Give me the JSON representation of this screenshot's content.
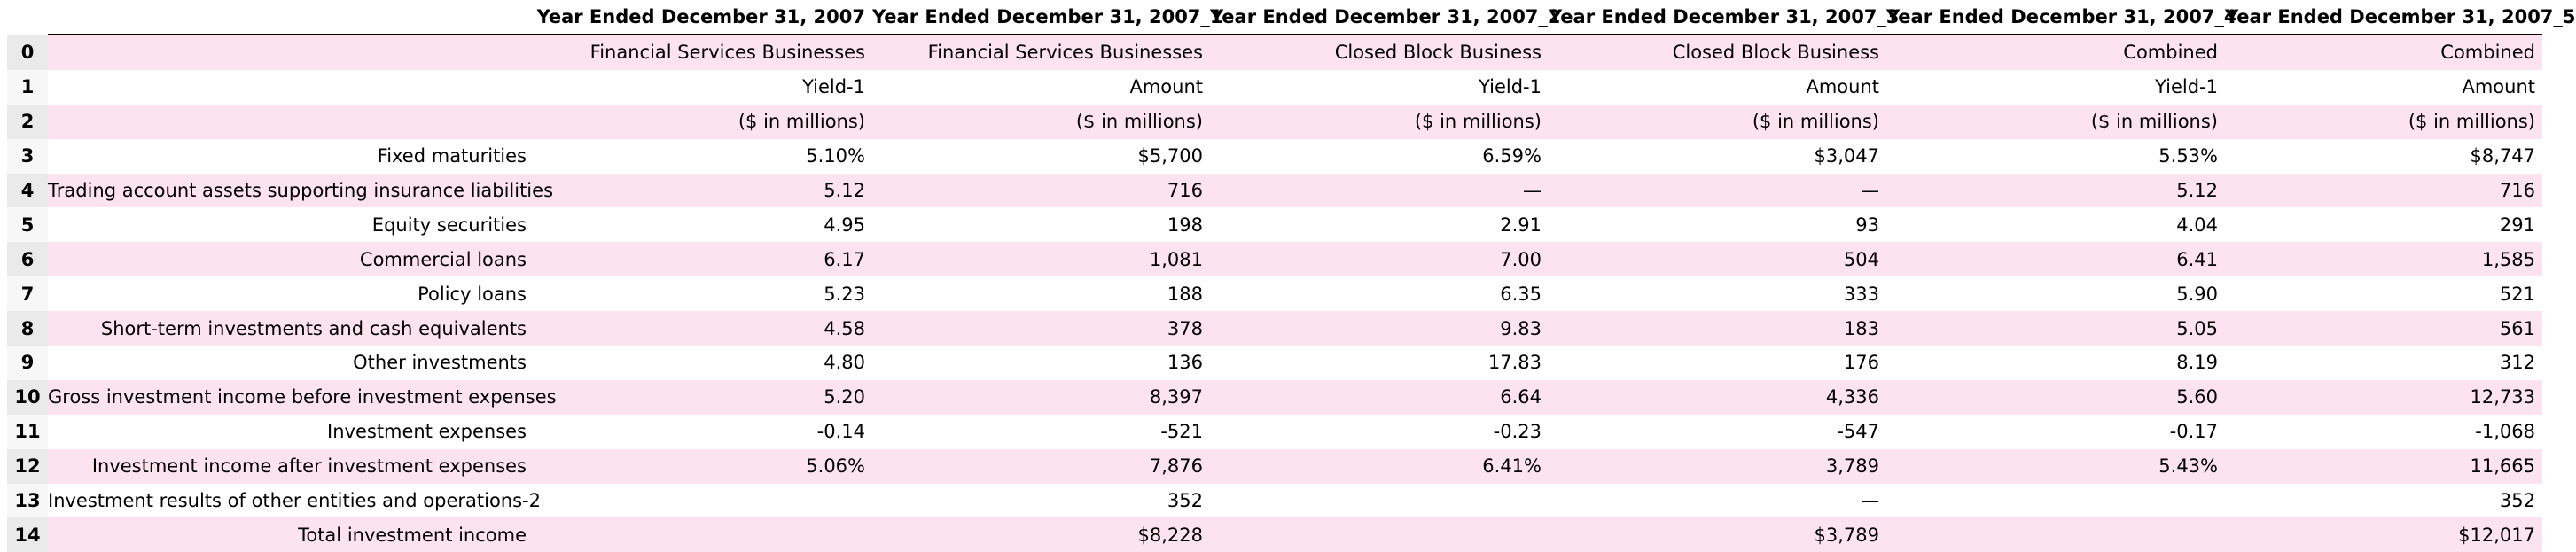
{
  "columns": [
    "Year Ended December 31, 2007",
    "Year Ended December 31, 2007_1",
    "Year Ended December 31, 2007_2",
    "Year Ended December 31, 2007_3",
    "Year Ended December 31, 2007_4",
    "Year Ended December 31, 2007_5"
  ],
  "rows": [
    {
      "idx": "0",
      "label": "",
      "cells": [
        "Financial Services Businesses",
        "Financial Services Businesses",
        "Closed Block Business",
        "Closed Block Business",
        "Combined",
        "Combined"
      ]
    },
    {
      "idx": "1",
      "label": "",
      "cells": [
        "Yield-1",
        "Amount",
        "Yield-1",
        "Amount",
        "Yield-1",
        "Amount"
      ]
    },
    {
      "idx": "2",
      "label": "",
      "cells": [
        "($ in millions)",
        "($ in millions)",
        "($ in millions)",
        "($ in millions)",
        "($ in millions)",
        "($ in millions)"
      ]
    },
    {
      "idx": "3",
      "label": "Fixed maturities",
      "cells": [
        "5.10%",
        "$5,700",
        "6.59%",
        "$3,047",
        "5.53%",
        "$8,747"
      ]
    },
    {
      "idx": "4",
      "label": "Trading account assets supporting insurance liabilities",
      "cells": [
        "5.12",
        "716",
        "—",
        "—",
        "5.12",
        "716"
      ]
    },
    {
      "idx": "5",
      "label": "Equity securities",
      "cells": [
        "4.95",
        "198",
        "2.91",
        "93",
        "4.04",
        "291"
      ]
    },
    {
      "idx": "6",
      "label": "Commercial loans",
      "cells": [
        "6.17",
        "1,081",
        "7.00",
        "504",
        "6.41",
        "1,585"
      ]
    },
    {
      "idx": "7",
      "label": "Policy loans",
      "cells": [
        "5.23",
        "188",
        "6.35",
        "333",
        "5.90",
        "521"
      ]
    },
    {
      "idx": "8",
      "label": "Short-term investments and cash equivalents",
      "cells": [
        "4.58",
        "378",
        "9.83",
        "183",
        "5.05",
        "561"
      ]
    },
    {
      "idx": "9",
      "label": "Other investments",
      "cells": [
        "4.80",
        "136",
        "17.83",
        "176",
        "8.19",
        "312"
      ]
    },
    {
      "idx": "10",
      "label": "Gross investment income before investment expenses",
      "cells": [
        "5.20",
        "8,397",
        "6.64",
        "4,336",
        "5.60",
        "12,733"
      ]
    },
    {
      "idx": "11",
      "label": "Investment expenses",
      "cells": [
        "-0.14",
        "-521",
        "-0.23",
        "-547",
        "-0.17",
        "-1,068"
      ]
    },
    {
      "idx": "12",
      "label": "Investment income after investment expenses",
      "cells": [
        "5.06%",
        "7,876",
        "6.41%",
        "3,789",
        "5.43%",
        "11,665"
      ]
    },
    {
      "idx": "13",
      "label": "Investment results of other entities and operations-2",
      "cells": [
        "",
        "352",
        "",
        "—",
        "",
        "352"
      ]
    },
    {
      "idx": "14",
      "label": "Total investment income",
      "cells": [
        "",
        "$8,228",
        "",
        "$3,789",
        "",
        "$12,017"
      ]
    }
  ],
  "colors": {
    "stripe": "#fde3ef",
    "base": "#ffffff"
  }
}
